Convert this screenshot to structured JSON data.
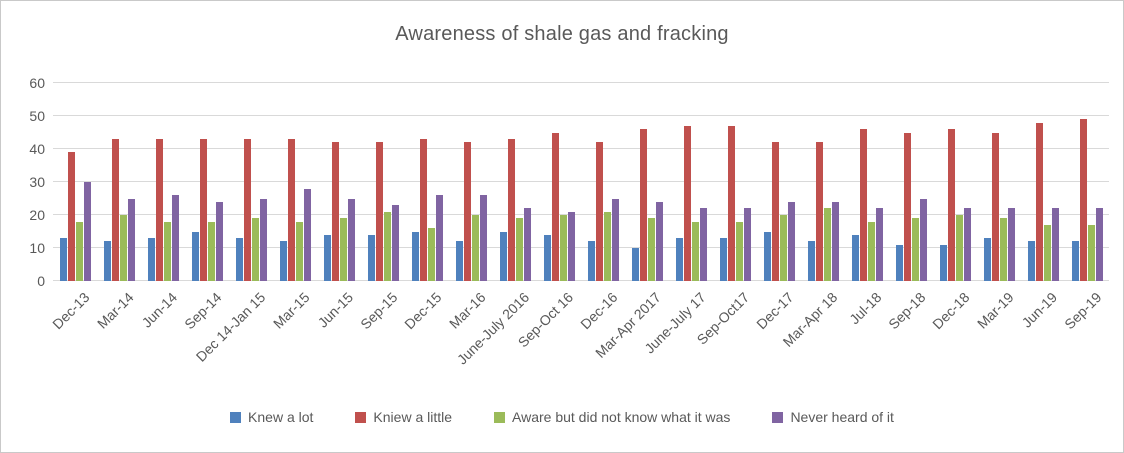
{
  "window": {
    "background": "#ffffff",
    "border_color": "#c9c9c9"
  },
  "chart_data": {
    "type": "bar",
    "title": "Awareness of shale gas and fracking",
    "title_color": "#595959",
    "categories": [
      "Dec-13",
      "Mar-14",
      "Jun-14",
      "Sep-14",
      "Dec 14-Jan 15",
      "Mar-15",
      "Jun-15",
      "Sep-15",
      "Dec-15",
      "Mar-16",
      "June-July 2016",
      "Sep-Oct 16",
      "Dec-16",
      "Mar-Apr 2017",
      "June-July 17",
      "Sep-Oct17",
      "Dec-17",
      "Mar-Apr 18",
      "Jul-18",
      "Sep-18",
      "Dec-18",
      "Mar-19",
      "Jun-19",
      "Sep-19"
    ],
    "series": [
      {
        "name": "Knew a lot",
        "color": "#4F81BD",
        "values": [
          13,
          12,
          13,
          15,
          13,
          12,
          14,
          14,
          15,
          12,
          15,
          14,
          12,
          10,
          13,
          13,
          15,
          12,
          14,
          11,
          11,
          13,
          12,
          12
        ]
      },
      {
        "name": "Kniew a little",
        "color": "#C0504D",
        "values": [
          39,
          43,
          43,
          43,
          43,
          43,
          42,
          42,
          43,
          42,
          43,
          45,
          42,
          46,
          47,
          47,
          42,
          42,
          46,
          45,
          46,
          45,
          48,
          49
        ]
      },
      {
        "name": "Aware but did not know what it was",
        "color": "#9BBB59",
        "values": [
          18,
          20,
          18,
          18,
          19,
          18,
          19,
          21,
          16,
          20,
          19,
          20,
          21,
          19,
          18,
          18,
          20,
          22,
          18,
          19,
          20,
          19,
          17,
          17
        ]
      },
      {
        "name": "Never heard of it",
        "color": "#8064A2",
        "values": [
          30,
          25,
          26,
          24,
          25,
          28,
          25,
          23,
          26,
          26,
          22,
          21,
          25,
          24,
          22,
          22,
          24,
          24,
          22,
          25,
          22,
          22,
          22,
          22
        ]
      }
    ],
    "ylim": [
      0,
      60
    ],
    "y_ticks": [
      0,
      10,
      20,
      30,
      40,
      50,
      60
    ],
    "grid": "horizontal",
    "gridline_color": "#D9D9D9",
    "axis_label_color": "#595959",
    "legend_position": "bottom",
    "x_label_rotation_deg": 45
  }
}
